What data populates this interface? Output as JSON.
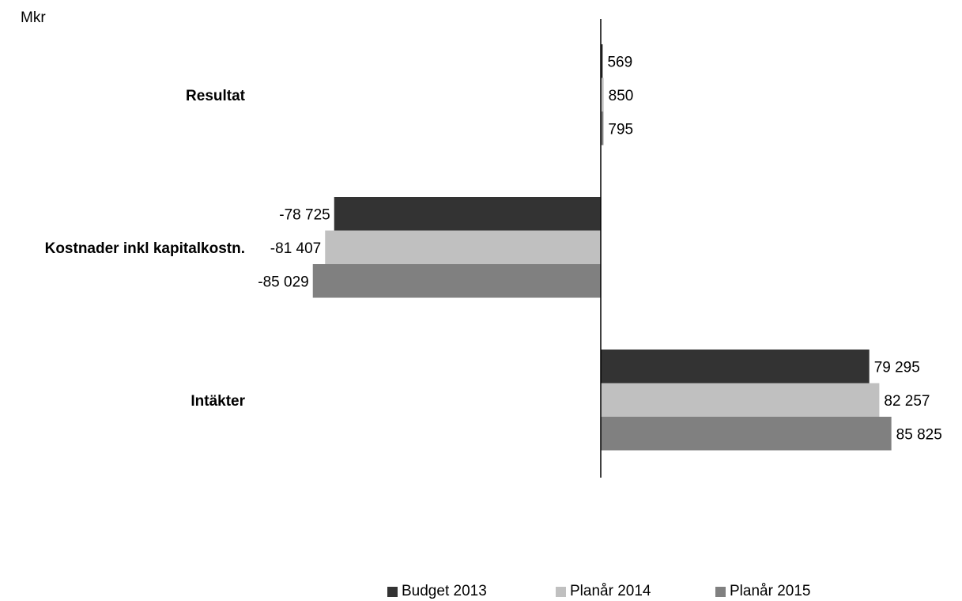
{
  "chart_data": {
    "type": "bar",
    "orientation": "horizontal",
    "unit_label": "Mkr",
    "categories": [
      "Resultat",
      "Kostnader inkl kapitalkostn.",
      "Intäkter"
    ],
    "series": [
      {
        "name": "Budget 2013",
        "color": "#333333",
        "values": [
          569,
          -78725,
          79295
        ],
        "labels": [
          "569",
          "-78 725",
          "79 295"
        ]
      },
      {
        "name": "Planår 2014",
        "color": "#c0c0c0",
        "values": [
          850,
          -81407,
          82257
        ],
        "labels": [
          "850",
          "-81 407",
          "82 257"
        ]
      },
      {
        "name": "Planår 2015",
        "color": "#808080",
        "values": [
          795,
          -85029,
          85825
        ],
        "labels": [
          "795",
          "-85 029",
          "85 825"
        ]
      }
    ],
    "xlim": [
      -100000,
      100000
    ],
    "grid": false,
    "legend_position": "bottom"
  }
}
